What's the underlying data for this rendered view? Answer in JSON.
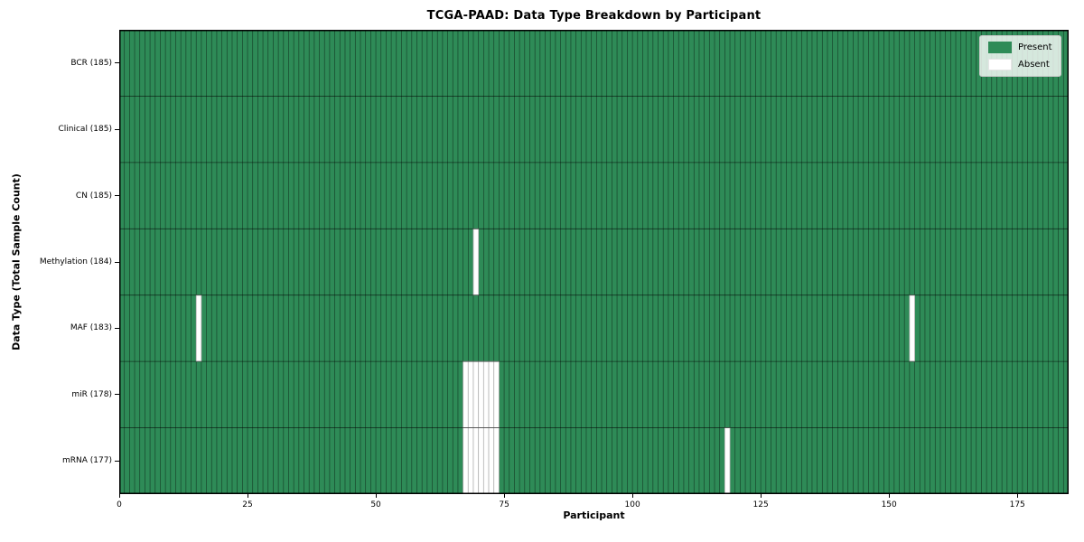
{
  "chart_data": {
    "type": "heatmap",
    "title": "TCGA-PAAD: Data Type Breakdown by Participant",
    "xlabel": "Participant",
    "ylabel": "Data Type (Total Sample Count)",
    "n_participants": 185,
    "x_axis": {
      "min": 0,
      "max": 185,
      "ticks": [
        0,
        25,
        50,
        75,
        100,
        125,
        150,
        175
      ]
    },
    "legend": {
      "position": "upper right",
      "entries": [
        {
          "label": "Present",
          "color": "#2e8b57"
        },
        {
          "label": "Absent",
          "color": "#ffffff"
        }
      ]
    },
    "rows": [
      {
        "label": "BCR (185)",
        "data_type": "BCR",
        "total": 185,
        "absent_participants": []
      },
      {
        "label": "Clinical (185)",
        "data_type": "Clinical",
        "total": 185,
        "absent_participants": []
      },
      {
        "label": "CN (185)",
        "data_type": "CN",
        "total": 185,
        "absent_participants": []
      },
      {
        "label": "Methylation (184)",
        "data_type": "Methylation",
        "total": 184,
        "absent_participants": [
          69
        ]
      },
      {
        "label": "MAF (183)",
        "data_type": "MAF",
        "total": 183,
        "absent_participants": [
          15,
          154
        ]
      },
      {
        "label": "miR (178)",
        "data_type": "miR",
        "total": 178,
        "absent_participants": [
          67,
          68,
          69,
          70,
          71,
          72,
          73
        ]
      },
      {
        "label": "mRNA (177)",
        "data_type": "mRNA",
        "total": 177,
        "absent_participants": [
          67,
          68,
          69,
          70,
          71,
          72,
          73,
          118
        ]
      }
    ],
    "colors": {
      "present": "#2e8b57",
      "absent": "#ffffff",
      "cell_edge_on_present": "rgba(0,0,0,0.5)",
      "cell_edge_on_absent": "#b3b3b3",
      "row_separator": "rgba(0,0,0,0.6)",
      "spine": "#000000"
    },
    "grid": true
  }
}
